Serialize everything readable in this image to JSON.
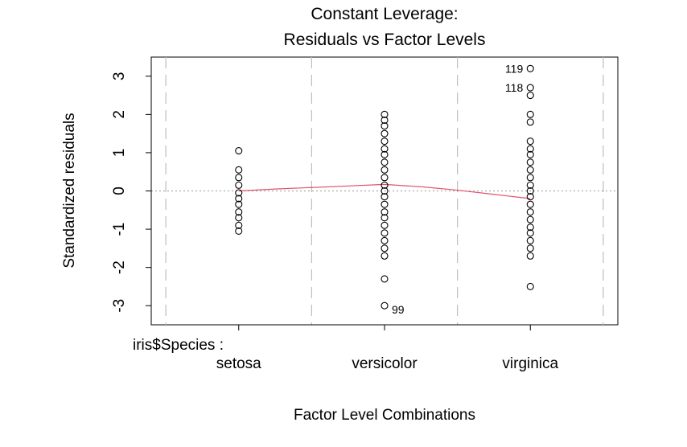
{
  "chart_data": {
    "type": "scatter",
    "title": "Constant Leverage:",
    "subtitle": "Residuals vs Factor Levels",
    "xlabel": "Factor Level Combinations",
    "ylabel": "Standardized residuals",
    "factor_label": "iris$Species :",
    "categories": [
      "setosa",
      "versicolor",
      "virginica"
    ],
    "ylim": [
      -3.5,
      3.5
    ],
    "yticks": [
      -3,
      -2,
      -1,
      0,
      1,
      2,
      3
    ],
    "ytick_labels": [
      "-3",
      "-2",
      "-1",
      "0",
      "1",
      "2",
      "3"
    ],
    "separator_positions": [
      0.5,
      1.5,
      2.5,
      3.5
    ],
    "reference_line_y": 0,
    "series": [
      {
        "category": "setosa",
        "values": [
          1.05,
          0.55,
          0.35,
          0.15,
          -0.05,
          -0.2,
          -0.35,
          -0.55,
          -0.7,
          -0.9,
          -1.05
        ]
      },
      {
        "category": "versicolor",
        "values": [
          2.0,
          1.85,
          1.7,
          1.5,
          1.3,
          1.1,
          0.95,
          0.75,
          0.55,
          0.35,
          0.15,
          0.0,
          -0.15,
          -0.35,
          -0.55,
          -0.7,
          -0.9,
          -1.1,
          -1.3,
          -1.5,
          -1.7,
          -2.3,
          -3.0
        ]
      },
      {
        "category": "virginica",
        "values": [
          3.2,
          2.7,
          2.5,
          2.0,
          1.8,
          1.3,
          1.1,
          0.95,
          0.75,
          0.55,
          0.35,
          0.15,
          0.0,
          -0.15,
          -0.35,
          -0.55,
          -0.75,
          -0.95,
          -1.1,
          -1.3,
          -1.5,
          -1.7,
          -2.5
        ]
      }
    ],
    "annotations": [
      {
        "label": "119",
        "category": "virginica",
        "y": 3.2,
        "side": "left"
      },
      {
        "label": "118",
        "category": "virginica",
        "y": 2.7,
        "side": "left"
      },
      {
        "label": "99",
        "category": "versicolor",
        "y": -3.0,
        "side": "right"
      }
    ],
    "smooth_line": {
      "points": [
        [
          1.0,
          0.0
        ],
        [
          1.25,
          0.05
        ],
        [
          1.5,
          0.09
        ],
        [
          1.75,
          0.13
        ],
        [
          2.0,
          0.17
        ],
        [
          2.25,
          0.11
        ],
        [
          2.5,
          0.02
        ],
        [
          2.75,
          -0.09
        ],
        [
          3.0,
          -0.2
        ]
      ],
      "color": "#df536b"
    },
    "grid": false
  }
}
